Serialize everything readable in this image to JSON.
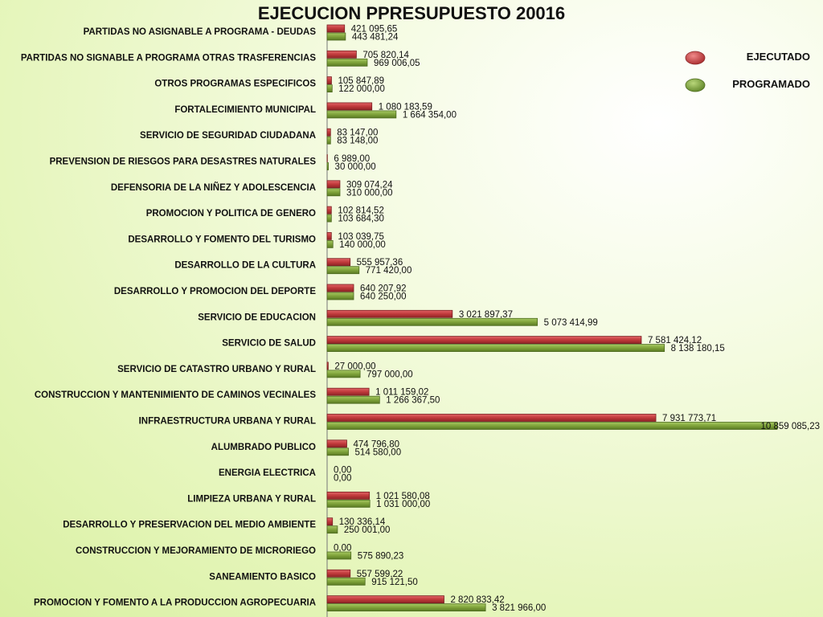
{
  "chart_data": {
    "type": "bar",
    "orientation": "horizontal",
    "title": "EJECUCION PPRESUPUESTO 20016",
    "categories": [
      "PARTIDAS NO ASIGNABLE A PROGRAMA - DEUDAS",
      "PARTIDAS NO SIGNABLE A PROGRAMA OTRAS TRASFERENCIAS",
      "OTROS PROGRAMAS ESPECIFICOS",
      "FORTALECIMIENTO MUNICIPAL",
      "SERVICIO DE SEGURIDAD CIUDADANA",
      "PREVENSION DE RIESGOS PARA DESASTRES NATURALES",
      "DEFENSORIA DE LA NIÑEZ Y ADOLESCENCIA",
      "PROMOCION Y POLITICA DE GENERO",
      "DESARROLLO Y FOMENTO DEL TURISMO",
      "DESARROLLO DE LA CULTURA",
      "DESARROLLO Y PROMOCION DEL DEPORTE",
      "SERVICIO DE EDUCACION",
      "SERVICIO DE SALUD",
      "SERVICIO DE CATASTRO URBANO Y RURAL",
      "CONSTRUCCION Y MANTENIMIENTO DE CAMINOS VECINALES",
      "INFRAESTRUCTURA URBANA Y RURAL",
      "ALUMBRADO PUBLICO",
      "ENERGIA ELECTRICA",
      "LIMPIEZA URBANA Y RURAL",
      "DESARROLLO Y PRESERVACION DEL MEDIO AMBIENTE",
      "CONSTRUCCION Y MEJORAMIENTO DE MICRORIEGO",
      "SANEAMIENTO BASICO",
      "PROMOCION Y FOMENTO A LA PRODUCCION AGROPECUARIA"
    ],
    "series": [
      {
        "name": "EJECUTADO",
        "color": "#c0393b",
        "values": [
          421095.65,
          705820.14,
          105847.89,
          1080183.59,
          83147.0,
          6989.0,
          309074.24,
          102814.52,
          103039.75,
          555957.36,
          640207.92,
          3021897.37,
          7581424.12,
          27000.0,
          1011159.02,
          7931773.71,
          474796.8,
          0.0,
          1021580.08,
          130336.14,
          0.0,
          557599.22,
          2820833.42
        ],
        "labels": [
          "421 095,65",
          "705 820,14",
          "105 847,89",
          "1 080 183,59",
          "83 147,00",
          "6 989,00",
          "309 074,24",
          "102 814,52",
          "103 039,75",
          "555 957,36",
          "640 207,92",
          "3 021 897,37",
          "7 581 424,12",
          "27 000,00",
          "1 011 159,02",
          "7 931 773,71",
          "474 796,80",
          "0,00",
          "1 021 580,08",
          "130 336,14",
          "0,00",
          "557 599,22",
          "2 820 833,42"
        ]
      },
      {
        "name": "PROGRAMADO",
        "color": "#7fa33a",
        "values": [
          443481.24,
          969006.05,
          122000.0,
          1664354.0,
          83148.0,
          30000.0,
          310000.0,
          103684.3,
          140000.0,
          771420.0,
          640250.0,
          5073414.99,
          8138180.15,
          797000.0,
          1266367.5,
          10859085.23,
          514580.0,
          0.0,
          1031000.0,
          250001.0,
          575890.23,
          915121.5,
          3821966.0
        ],
        "labels": [
          "443 481,24",
          "969 006,05",
          "122 000,00",
          "1 664 354,00",
          "83 148,00",
          "30 000,00",
          "310 000,00",
          "103 684,30",
          "140 000,00",
          "771 420,00",
          "640 250,00",
          "5 073 414,99",
          "8 138 180,15",
          "797 000,00",
          "1 266 367,50",
          "10 859 085,23",
          "514 580,00",
          "0,00",
          "1 031 000,00",
          "250 001,00",
          "575 890,23",
          "915 121,50",
          "3 821 966,00"
        ]
      }
    ],
    "xlim": [
      0,
      10859085.23
    ],
    "grid": false,
    "legend_position": "top-right"
  }
}
